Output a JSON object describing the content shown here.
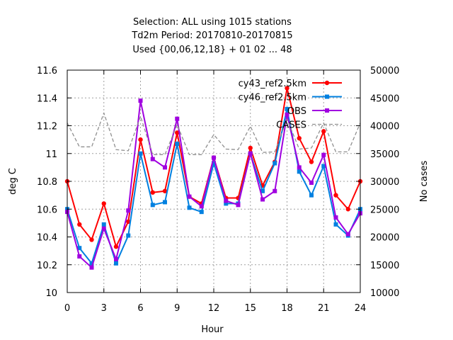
{
  "chart_data": {
    "type": "line",
    "title_lines": [
      "Selection: ALL using  1015 stations",
      "Td2m   Period: 20170810-20170815",
      "Used {00,06,12,18} + 01 02 ... 48"
    ],
    "xlabel": "Hour",
    "ylabel": "deg C",
    "y2label": "No cases",
    "xlim": [
      0,
      24
    ],
    "ylim": [
      10,
      11.6
    ],
    "y2lim": [
      10000,
      50000
    ],
    "xticks": [
      0,
      3,
      6,
      9,
      12,
      15,
      18,
      21,
      24
    ],
    "yticks": [
      10,
      10.2,
      10.4,
      10.6,
      10.8,
      11,
      11.2,
      11.4,
      11.6
    ],
    "y2ticks": [
      10000,
      15000,
      20000,
      25000,
      30000,
      35000,
      40000,
      45000,
      50000
    ],
    "ytick_labels": [
      "10",
      "10.2",
      "10.4",
      "10.6",
      "10.8",
      "11",
      "11.2",
      "11.4",
      "11.6"
    ],
    "y2tick_labels": [
      "10000",
      "15000",
      "20000",
      "25000",
      "30000",
      "35000",
      "40000",
      "45000",
      "50000"
    ],
    "grid": true,
    "legend_position": "top-right",
    "x": [
      0,
      1,
      2,
      3,
      4,
      5,
      6,
      7,
      8,
      9,
      10,
      11,
      12,
      13,
      14,
      15,
      16,
      17,
      18,
      19,
      20,
      21,
      22,
      23,
      24
    ],
    "series": [
      {
        "name": "cy43_ref2.5km",
        "color": "#ff0000",
        "marker": "circle",
        "axis": "y",
        "values": [
          10.8,
          10.49,
          10.38,
          10.64,
          10.33,
          10.51,
          11.1,
          10.72,
          10.73,
          11.15,
          10.69,
          10.64,
          10.97,
          10.68,
          10.68,
          11.04,
          10.77,
          10.94,
          11.47,
          11.11,
          10.94,
          11.16,
          10.7,
          10.6,
          10.8
        ]
      },
      {
        "name": "cy46_ref2.5km",
        "color": "#0080e0",
        "marker": "square",
        "axis": "y",
        "values": [
          10.6,
          10.32,
          10.21,
          10.49,
          10.21,
          10.41,
          11.0,
          10.63,
          10.65,
          11.07,
          10.61,
          10.58,
          10.93,
          10.64,
          10.64,
          11.0,
          10.73,
          10.93,
          11.32,
          10.87,
          10.7,
          10.91,
          10.49,
          10.41,
          10.6
        ]
      },
      {
        "name": "OBS",
        "color": "#a000e0",
        "marker": "square",
        "axis": "y",
        "values": [
          10.58,
          10.26,
          10.18,
          10.46,
          10.24,
          10.59,
          11.38,
          10.96,
          10.9,
          11.25,
          10.69,
          10.62,
          10.97,
          10.66,
          10.63,
          11.0,
          10.67,
          10.73,
          11.28,
          10.9,
          10.79,
          10.99,
          10.54,
          10.42,
          10.57
        ]
      },
      {
        "name": "CASES",
        "color": "#909090",
        "marker": "none",
        "dashed": true,
        "axis": "y2",
        "values": [
          40500,
          36200,
          36200,
          42300,
          35700,
          35500,
          41700,
          34800,
          34800,
          40200,
          34800,
          34800,
          38400,
          35800,
          35700,
          39900,
          35200,
          35300,
          41200,
          35800,
          36000,
          40500,
          35300,
          35300,
          40500
        ]
      }
    ]
  }
}
